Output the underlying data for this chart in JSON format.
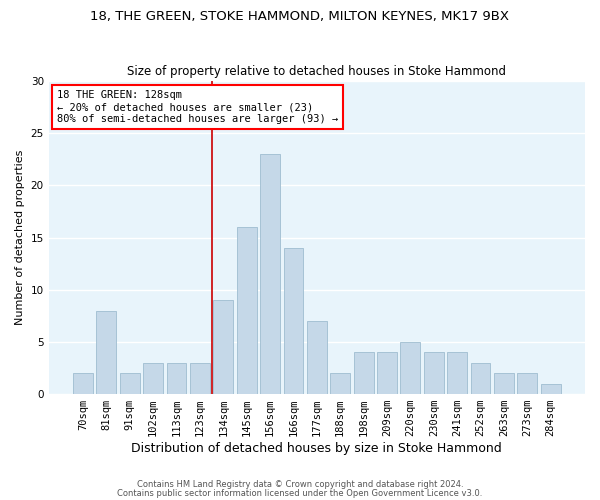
{
  "title1": "18, THE GREEN, STOKE HAMMOND, MILTON KEYNES, MK17 9BX",
  "title2": "Size of property relative to detached houses in Stoke Hammond",
  "xlabel": "Distribution of detached houses by size in Stoke Hammond",
  "ylabel": "Number of detached properties",
  "bar_labels": [
    "70sqm",
    "81sqm",
    "91sqm",
    "102sqm",
    "113sqm",
    "123sqm",
    "134sqm",
    "145sqm",
    "156sqm",
    "166sqm",
    "177sqm",
    "188sqm",
    "198sqm",
    "209sqm",
    "220sqm",
    "230sqm",
    "241sqm",
    "252sqm",
    "263sqm",
    "273sqm",
    "284sqm"
  ],
  "bar_values": [
    2,
    8,
    2,
    3,
    3,
    3,
    9,
    16,
    23,
    14,
    7,
    2,
    4,
    4,
    5,
    4,
    4,
    3,
    2,
    2,
    1
  ],
  "bar_color": "#c5d8e8",
  "bar_edge_color": "#9fbdd0",
  "annotation_text": "18 THE GREEN: 128sqm\n← 20% of detached houses are smaller (23)\n80% of semi-detached houses are larger (93) →",
  "vline_x_index": 6,
  "vline_color": "#cc0000",
  "ylim": [
    0,
    30
  ],
  "yticks": [
    0,
    5,
    10,
    15,
    20,
    25,
    30
  ],
  "background_color": "#e8f4fb",
  "grid_color": "white",
  "footer1": "Contains HM Land Registry data © Crown copyright and database right 2024.",
  "footer2": "Contains public sector information licensed under the Open Government Licence v3.0.",
  "title1_fontsize": 9.5,
  "title2_fontsize": 8.5,
  "tick_fontsize": 7.5,
  "ylabel_fontsize": 8,
  "xlabel_fontsize": 9
}
